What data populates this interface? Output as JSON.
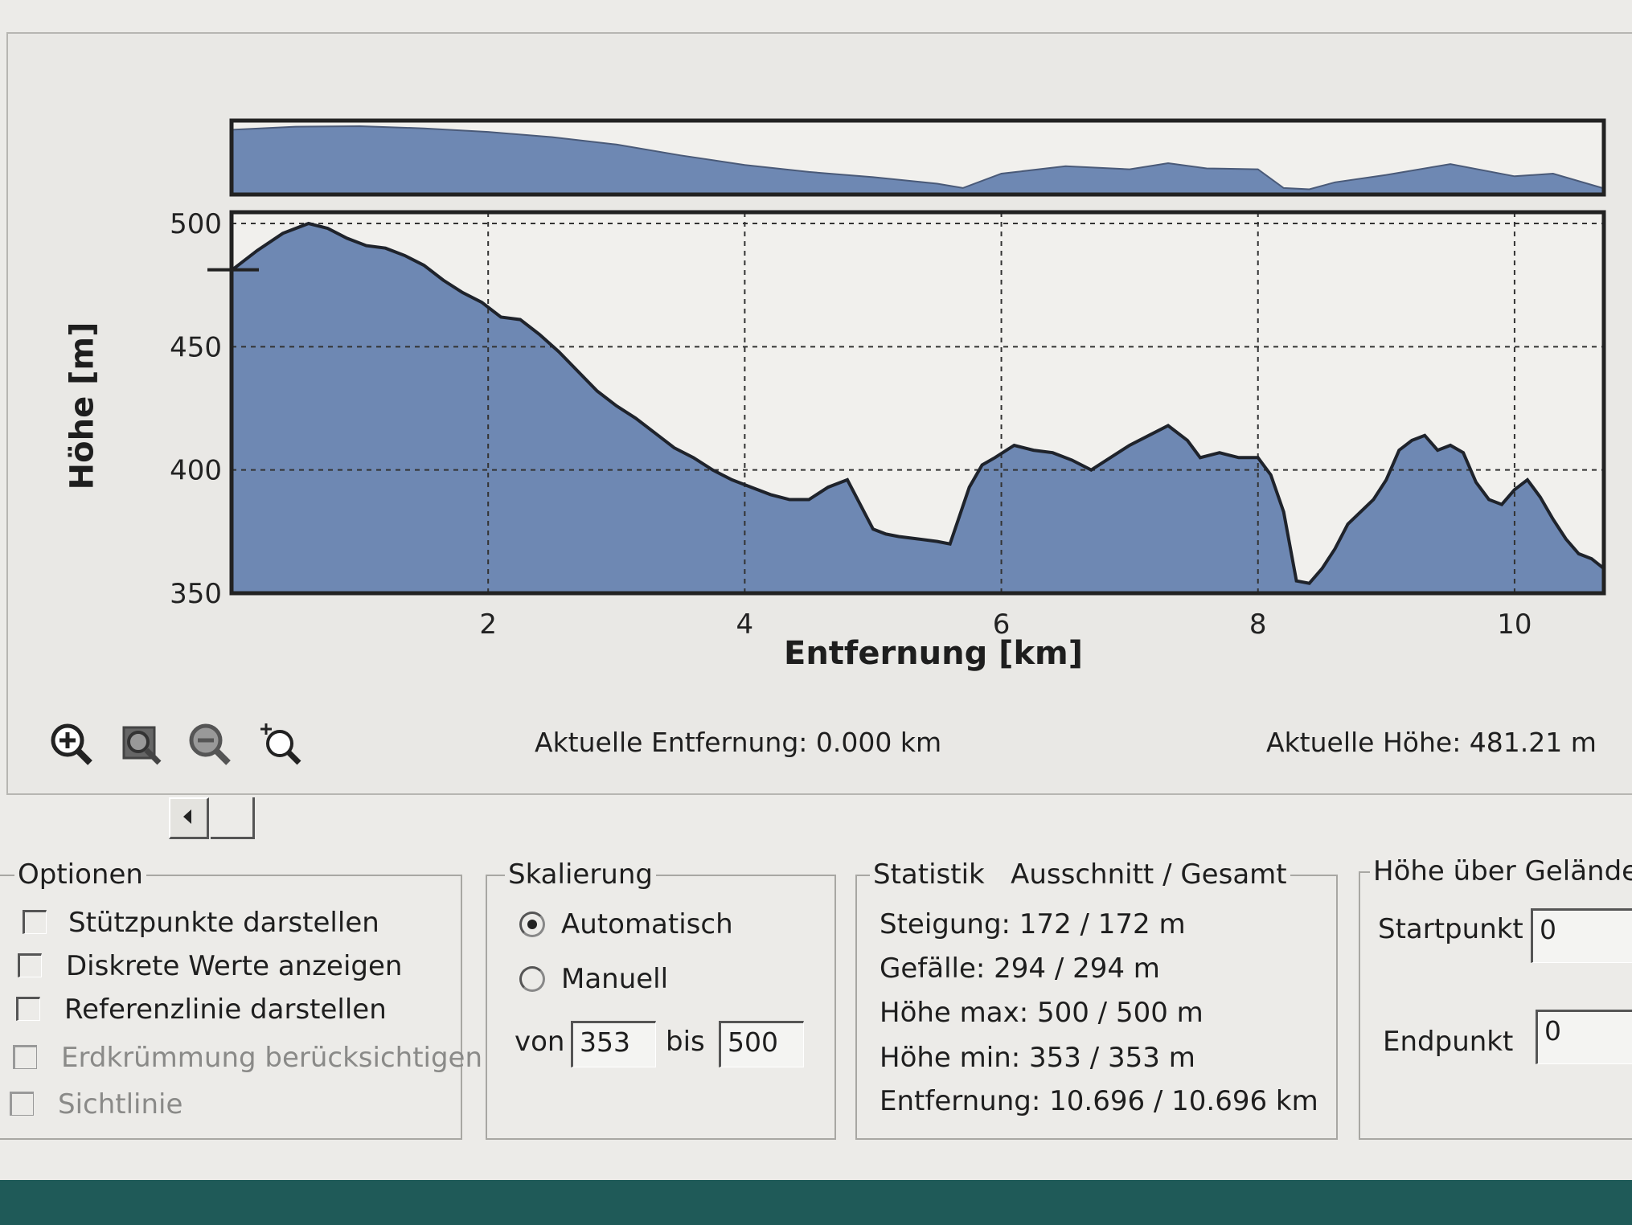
{
  "chart_data": {
    "type": "area",
    "xlabel": "Entfernung [km]",
    "ylabel": "Höhe [m]",
    "xlim": [
      0,
      10.696
    ],
    "ylim": [
      350,
      500
    ],
    "xticks": [
      2,
      4,
      6,
      8,
      10
    ],
    "yticks": [
      350,
      400,
      450,
      500
    ],
    "grid": true,
    "fill_color": "#6e88b3",
    "line_color": "#1f232b",
    "current_marker_altitude": 481.21,
    "x": [
      0,
      0.2,
      0.4,
      0.6,
      0.75,
      0.9,
      1.05,
      1.2,
      1.35,
      1.5,
      1.65,
      1.8,
      1.95,
      2.1,
      2.25,
      2.4,
      2.55,
      2.7,
      2.85,
      3.0,
      3.15,
      3.3,
      3.45,
      3.6,
      3.75,
      3.9,
      4.05,
      4.2,
      4.35,
      4.5,
      4.65,
      4.8,
      4.9,
      5.0,
      5.1,
      5.2,
      5.35,
      5.5,
      5.6,
      5.75,
      5.85,
      5.95,
      6.1,
      6.25,
      6.4,
      6.55,
      6.7,
      6.85,
      7.0,
      7.15,
      7.3,
      7.45,
      7.55,
      7.7,
      7.85,
      8.0,
      8.1,
      8.2,
      8.3,
      8.4,
      8.5,
      8.6,
      8.7,
      8.8,
      8.9,
      9.0,
      9.1,
      9.2,
      9.3,
      9.4,
      9.5,
      9.6,
      9.7,
      9.8,
      9.9,
      10.0,
      10.1,
      10.2,
      10.3,
      10.4,
      10.5,
      10.6,
      10.696
    ],
    "y": [
      481,
      489,
      496,
      500,
      498,
      494,
      491,
      490,
      487,
      483,
      477,
      472,
      468,
      462,
      461,
      455,
      448,
      440,
      432,
      426,
      421,
      415,
      409,
      405,
      400,
      396,
      393,
      390,
      388,
      388,
      393,
      396,
      386,
      376,
      374,
      373,
      372,
      371,
      370,
      393,
      402,
      405,
      410,
      408,
      407,
      404,
      400,
      405,
      410,
      414,
      418,
      412,
      405,
      407,
      405,
      405,
      398,
      383,
      355,
      354,
      360,
      368,
      378,
      383,
      388,
      396,
      408,
      412,
      414,
      408,
      410,
      407,
      395,
      388,
      386,
      392,
      396,
      389,
      380,
      372,
      366,
      364,
      360
    ],
    "overview_x": [
      0,
      0.5,
      1.0,
      1.5,
      2.0,
      2.5,
      3.0,
      3.5,
      4.0,
      4.5,
      5.0,
      5.5,
      5.7,
      6.0,
      6.5,
      7.0,
      7.3,
      7.6,
      8.0,
      8.2,
      8.4,
      8.6,
      9.0,
      9.5,
      10.0,
      10.3,
      10.696
    ],
    "overview_y": [
      489,
      496,
      497,
      492,
      484,
      472,
      455,
      430,
      408,
      392,
      380,
      365,
      355,
      388,
      405,
      398,
      412,
      400,
      398,
      355,
      352,
      368,
      385,
      410,
      382,
      388,
      354
    ]
  },
  "toolbar": {
    "icons": [
      "zoom-in-icon",
      "zoom-region-icon",
      "zoom-out-icon",
      "zoom-reset-icon"
    ]
  },
  "status": {
    "current_distance": "Aktuelle Entfernung: 0.000 km",
    "current_altitude": "Aktuelle Höhe: 481.21 m"
  },
  "optionen": {
    "title": "Optionen",
    "items": [
      {
        "label": "Stützpunkte darstellen",
        "checked": false,
        "enabled": true
      },
      {
        "label": "Diskrete Werte anzeigen",
        "checked": false,
        "enabled": true
      },
      {
        "label": "Referenzlinie darstellen",
        "checked": false,
        "enabled": true
      },
      {
        "label": "Erdkrümmung berücksichtigen",
        "checked": false,
        "enabled": false
      },
      {
        "label": "Sichtlinie",
        "checked": false,
        "enabled": false
      }
    ]
  },
  "skalierung": {
    "title": "Skalierung",
    "auto_label": "Automatisch",
    "manual_label": "Manuell",
    "selected": "Automatisch",
    "von_label": "von",
    "von_value": "353",
    "bis_label": "bis",
    "bis_value": "500"
  },
  "statistik": {
    "title": "Statistik   Ausschnitt / Gesamt",
    "steigung": "Steigung: 172 / 172 m",
    "gefaelle": "Gefälle: 294 / 294 m",
    "hoehe_max": "Höhe max: 500 / 500 m",
    "hoehe_min": "Höhe min: 353 / 353 m",
    "entfernung": "Entfernung: 10.696 / 10.696 km"
  },
  "gelaende": {
    "title": "Höhe über Gelände a",
    "startpunkt_label": "Startpunkt",
    "startpunkt_value": "0",
    "endpunkt_label": "Endpunkt",
    "endpunkt_value": "0"
  }
}
